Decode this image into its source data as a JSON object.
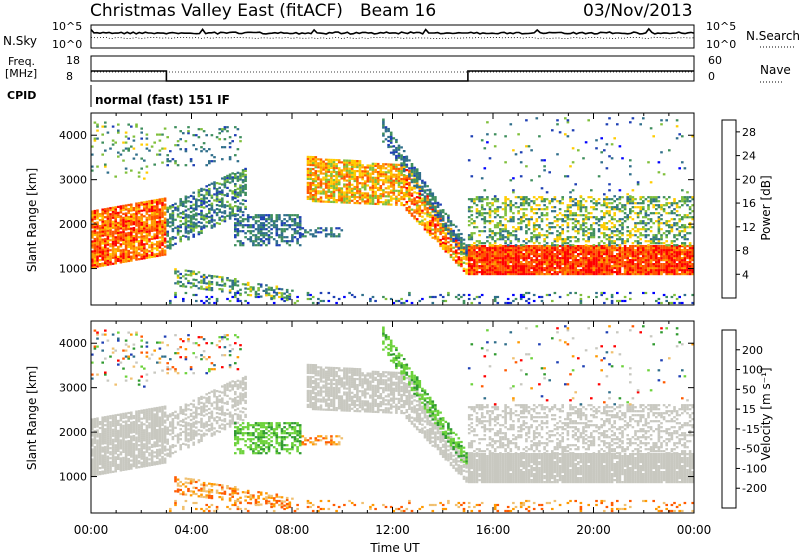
{
  "header": {
    "title": "Christmas Valley East (fitACF)",
    "beam": "Beam 16",
    "date": "03/Nov/2013"
  },
  "top_strips": {
    "nsky_label": "N.Sky",
    "nsearch_label": "N.Search",
    "freq_label_1": "Freq.",
    "freq_label_2": "[MHz]",
    "nave_label": "Nave",
    "cpid_label": "CPID",
    "cpid_value": "normal (fast) 151 IF",
    "nsky_ticks": [
      "10^5",
      "10^0"
    ],
    "nsearch_ticks": [
      "10^5",
      "10^0"
    ],
    "freq_ticks": [
      "18",
      "8"
    ],
    "nave_ticks": [
      "60",
      "0"
    ]
  },
  "colors": {
    "power_scale": [
      "#0000ff",
      "#1e3fb4",
      "#2f6e8a",
      "#3e8e5c",
      "#7fbf3a",
      "#ffcc00",
      "#ff9900",
      "#ff5500",
      "#ff0000"
    ],
    "velocity_scale": [
      "#ff0000",
      "#ff5a00",
      "#ff9900",
      "#f0c070",
      "#c8c8c0",
      "#c8c8c0",
      "#6cd23a",
      "#2f9a2f",
      "#2f6e8a",
      "#1e3fb4"
    ],
    "ground_scatter": "#c8c8c0"
  },
  "chart_data": [
    {
      "type": "heatmap",
      "name": "power",
      "xlabel": "Time UT",
      "ylabel": "Slant Range [km]",
      "x_ticks": [
        "00:00",
        "04:00",
        "08:00",
        "12:00",
        "16:00",
        "20:00",
        "00:00"
      ],
      "x_range_hours": [
        0,
        24
      ],
      "y_ticks": [
        1000,
        2000,
        3000,
        4000
      ],
      "y_range_km": [
        180,
        4500
      ],
      "colorbar_label": "Power [dB]",
      "colorbar_ticks": [
        4,
        8,
        12,
        16,
        20,
        24,
        28
      ],
      "colorbar_range": [
        0,
        30
      ]
    },
    {
      "type": "heatmap",
      "name": "velocity",
      "xlabel": "Time UT",
      "ylabel": "Slant Range [km]",
      "x_ticks": [
        "00:00",
        "04:00",
        "08:00",
        "12:00",
        "16:00",
        "20:00",
        "00:00"
      ],
      "x_range_hours": [
        0,
        24
      ],
      "y_ticks": [
        1000,
        2000,
        3000,
        4000
      ],
      "y_range_km": [
        180,
        4500
      ],
      "colorbar_label": "Velocity [m s⁻¹]",
      "colorbar_ticks": [
        200,
        100,
        50,
        15,
        -15,
        -50,
        -100,
        -200
      ]
    },
    {
      "type": "line",
      "name": "frequency-and-nave",
      "series": [
        {
          "values_mhz": [
            [
              0,
              12
            ],
            [
              3,
              12
            ],
            [
              3,
              8
            ],
            [
              15,
              8
            ],
            [
              15,
              12
            ],
            [
              24,
              12
            ]
          ]
        }
      ]
    }
  ]
}
